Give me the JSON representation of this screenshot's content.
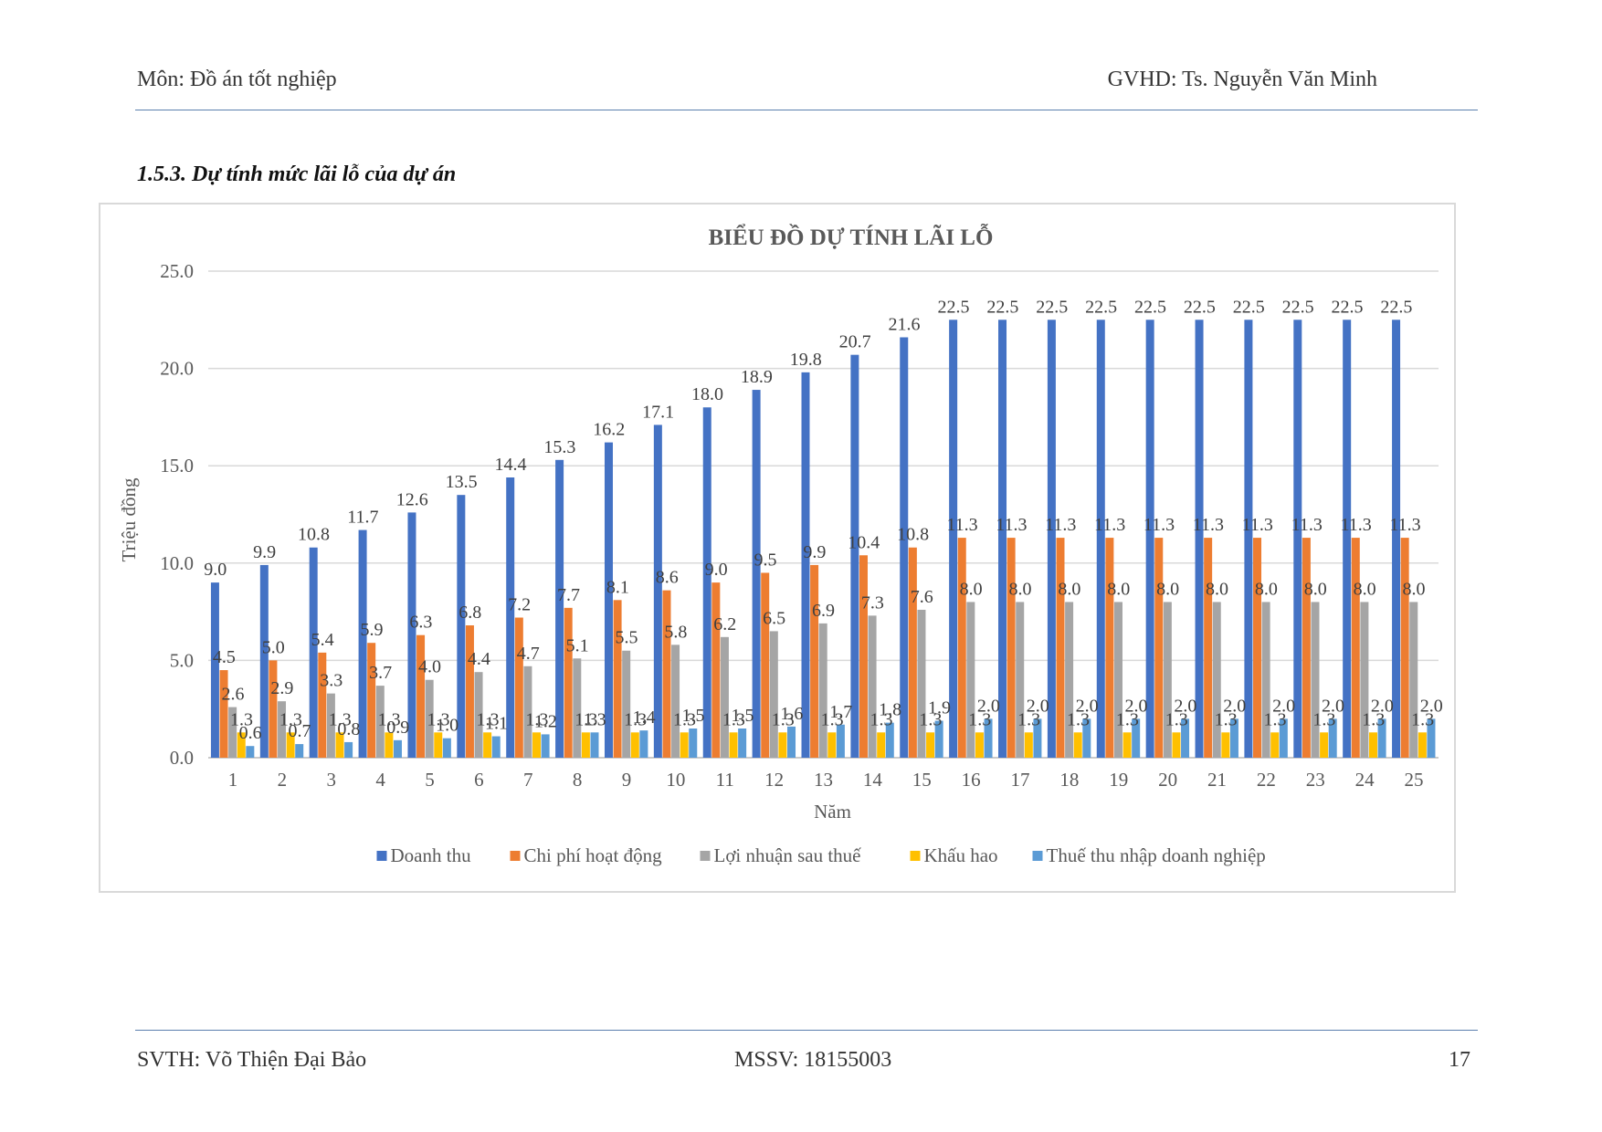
{
  "header": {
    "left": "Môn: Đồ án tốt nghiệp",
    "right": "GVHD: Ts. Nguyễn Văn Minh"
  },
  "section_heading": "1.5.3. Dự tính mức lãi lỗ của dự án",
  "footer": {
    "left": "SVTH: Võ Thiện Đại Bảo",
    "middle": "MSSV: 18155003",
    "page_number": "17"
  },
  "chart_data": {
    "type": "bar",
    "title": "BIỂU ĐỒ DỰ TÍNH LÃI LỖ",
    "xlabel": "Năm",
    "ylabel": "Triệu đồng",
    "ylim": [
      0,
      25
    ],
    "yticks": [
      "0.0",
      "5.0",
      "10.0",
      "15.0",
      "20.0",
      "25.0"
    ],
    "grid": true,
    "legend_position": "bottom",
    "categories": [
      "1",
      "2",
      "3",
      "4",
      "5",
      "6",
      "7",
      "8",
      "9",
      "10",
      "11",
      "12",
      "13",
      "14",
      "15",
      "16",
      "17",
      "18",
      "19",
      "20",
      "21",
      "22",
      "23",
      "24",
      "25"
    ],
    "series": [
      {
        "name": "Doanh thu",
        "color": "#4472c4",
        "values": [
          9.0,
          9.9,
          10.8,
          11.7,
          12.6,
          13.5,
          14.4,
          15.3,
          16.2,
          17.1,
          18.0,
          18.9,
          19.8,
          20.7,
          21.6,
          22.5,
          22.5,
          22.5,
          22.5,
          22.5,
          22.5,
          22.5,
          22.5,
          22.5,
          22.5
        ]
      },
      {
        "name": "Chi phí hoạt động",
        "color": "#ed7d31",
        "values": [
          4.5,
          5.0,
          5.4,
          5.9,
          6.3,
          6.8,
          7.2,
          7.7,
          8.1,
          8.6,
          9.0,
          9.5,
          9.9,
          10.4,
          10.8,
          11.3,
          11.3,
          11.3,
          11.3,
          11.3,
          11.3,
          11.3,
          11.3,
          11.3,
          11.3
        ]
      },
      {
        "name": "Lợi nhuận sau thuế",
        "color": "#a5a5a5",
        "values": [
          2.6,
          2.9,
          3.3,
          3.7,
          4.0,
          4.4,
          4.7,
          5.1,
          5.5,
          5.8,
          6.2,
          6.5,
          6.9,
          7.3,
          7.6,
          8.0,
          8.0,
          8.0,
          8.0,
          8.0,
          8.0,
          8.0,
          8.0,
          8.0,
          8.0
        ]
      },
      {
        "name": "Khấu hao",
        "color": "#ffc000",
        "values": [
          1.3,
          1.3,
          1.3,
          1.3,
          1.3,
          1.3,
          1.3,
          1.3,
          1.3,
          1.3,
          1.3,
          1.3,
          1.3,
          1.3,
          1.3,
          1.3,
          1.3,
          1.3,
          1.3,
          1.3,
          1.3,
          1.3,
          1.3,
          1.3,
          1.3
        ]
      },
      {
        "name": "Thuế thu nhập doanh nghiệp",
        "color": "#5b9bd5",
        "values": [
          0.6,
          0.7,
          0.8,
          0.9,
          1.0,
          1.1,
          1.2,
          1.3,
          1.4,
          1.5,
          1.5,
          1.6,
          1.7,
          1.8,
          1.9,
          2.0,
          2.0,
          2.0,
          2.0,
          2.0,
          2.0,
          2.0,
          2.0,
          2.0,
          2.0
        ]
      }
    ]
  }
}
